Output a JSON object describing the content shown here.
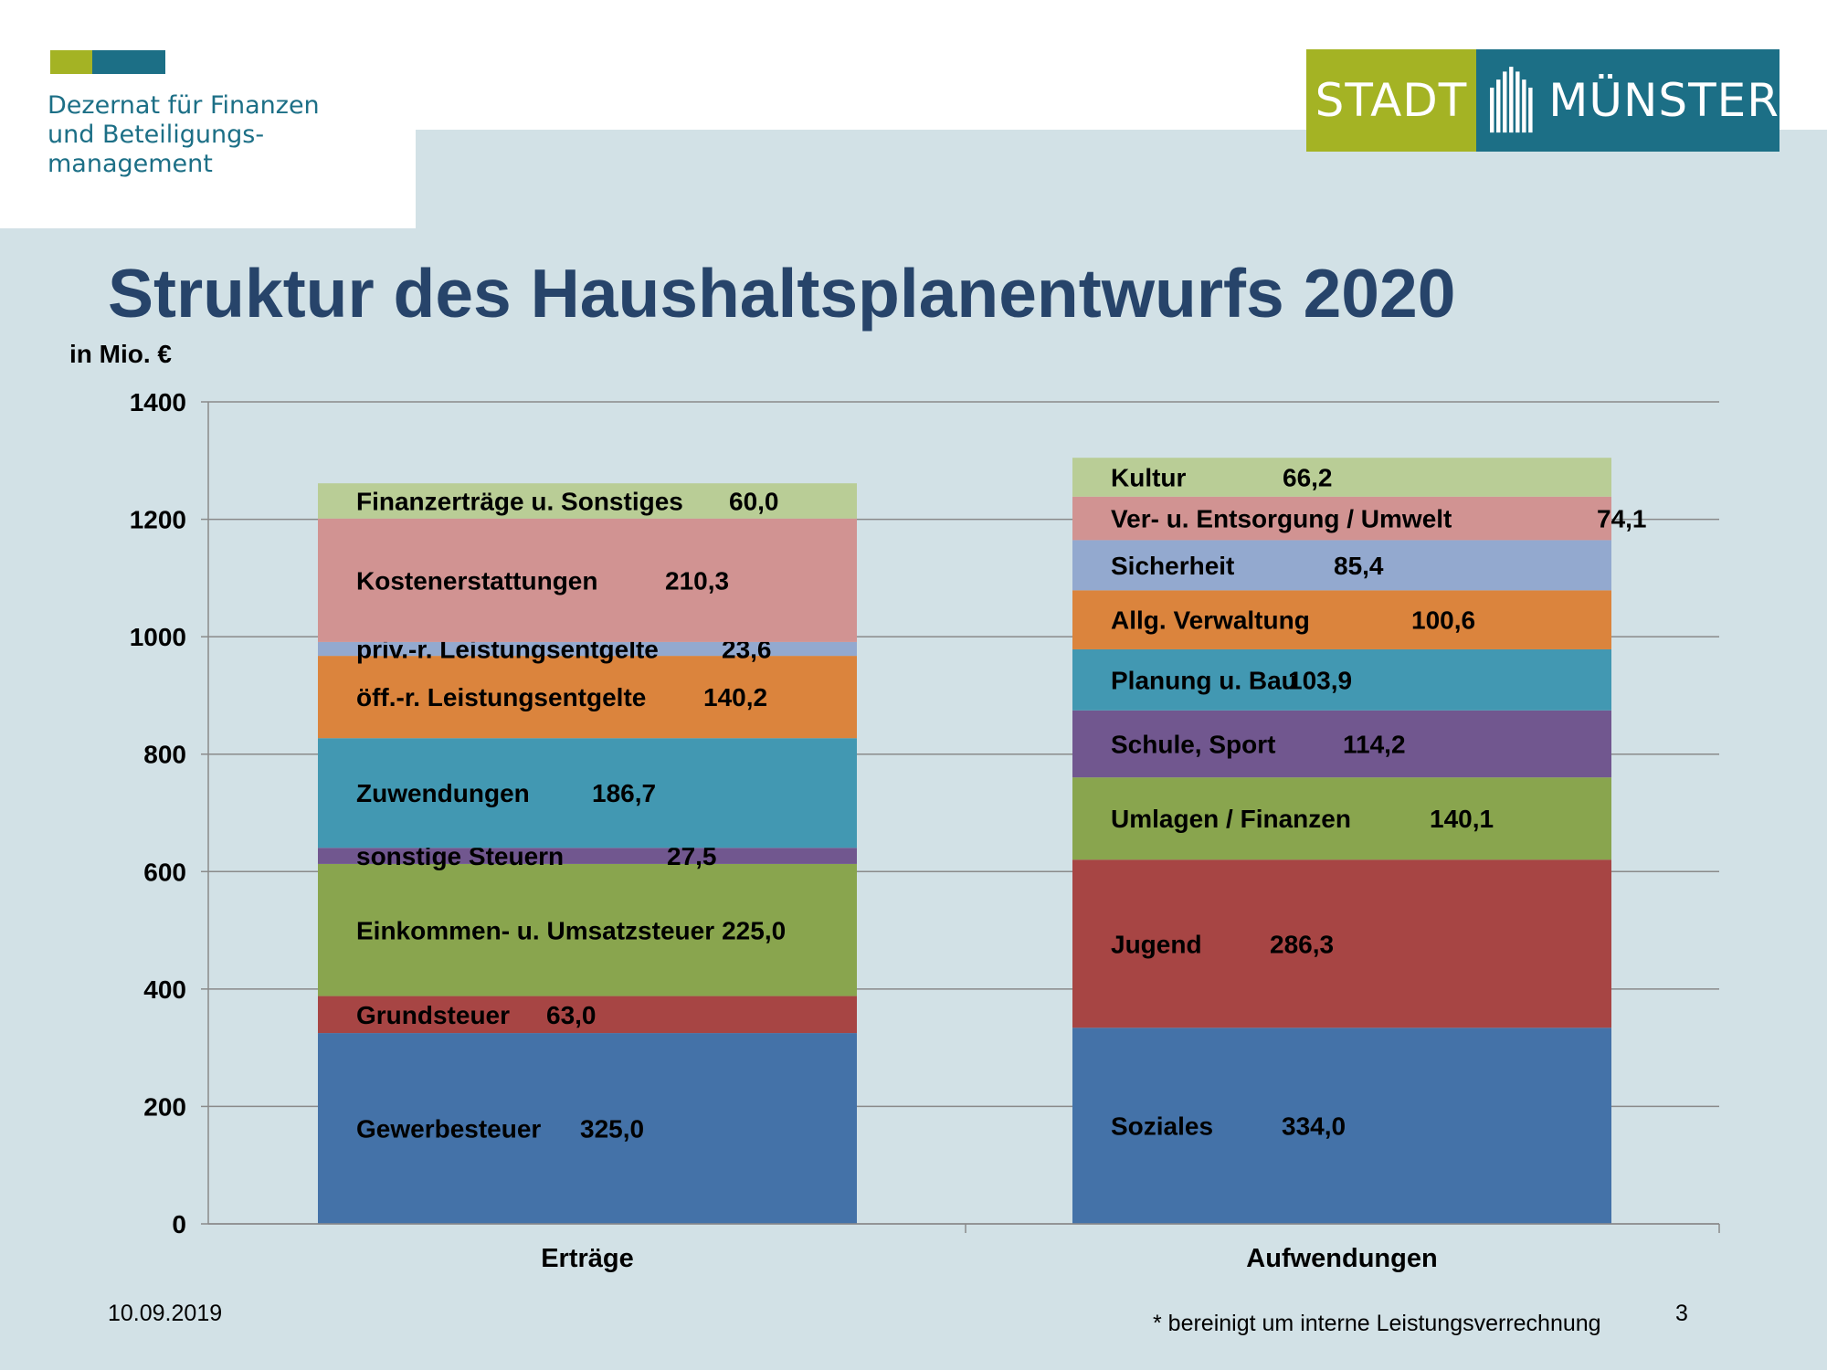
{
  "header": {
    "department": "Dezernat für Finanzen\nund Beteiligungs-\nmanagement",
    "logo_left": "STADT",
    "logo_right": "MÜNSTER",
    "colors": {
      "logo_green": "#a4b324",
      "logo_teal": "#1c6f86"
    }
  },
  "title": "Struktur des Haushaltsplanentwurfs 2020",
  "unit_label": "in Mio. €",
  "footer": {
    "date": "10.09.2019",
    "note": "* bereinigt um interne Leistungsverrechnung",
    "page": "3"
  },
  "chart_data": {
    "type": "bar",
    "stacked": true,
    "ylabel": "in Mio. €",
    "ylim": [
      0,
      1400
    ],
    "yticks": [
      0,
      200,
      400,
      600,
      800,
      1000,
      1200,
      1400
    ],
    "grid": true,
    "categories": [
      "Erträge",
      "Aufwendungen"
    ],
    "stacks": [
      {
        "category": "Erträge",
        "segments": [
          {
            "label": "Gewerbesteuer",
            "value": 325.0,
            "value_text": "325,0",
            "color": "#4472a8"
          },
          {
            "label": "Grundsteuer",
            "value": 63.0,
            "value_text": "63,0",
            "color": "#a74544"
          },
          {
            "label": "Einkommen- u. Umsatzsteuer",
            "value": 225.0,
            "value_text": "225,0",
            "color": "#89a54e"
          },
          {
            "label": "sonstige Steuern",
            "value": 27.5,
            "value_text": "27,5",
            "color": "#71578f"
          },
          {
            "label": "Zuwendungen",
            "value": 186.7,
            "value_text": "186,7",
            "color": "#4298b2"
          },
          {
            "label": "öff.-r. Leistungsentgelte",
            "value": 140.2,
            "value_text": "140,2",
            "color": "#db843d"
          },
          {
            "label": "priv.-r. Leistungsentgelte",
            "value": 23.6,
            "value_text": "23,6",
            "color": "#93a9cf"
          },
          {
            "label": "Kostenerstattungen",
            "value": 210.3,
            "value_text": "210,3",
            "color": "#d19392"
          },
          {
            "label": "Finanzerträge u. Sonstiges",
            "value": 60.0,
            "value_text": "60,0",
            "color": "#b9cd96"
          }
        ]
      },
      {
        "category": "Aufwendungen",
        "segments": [
          {
            "label": "Soziales",
            "value": 334.0,
            "value_text": "334,0",
            "color": "#4472a8"
          },
          {
            "label": "Jugend",
            "value": 286.3,
            "value_text": "286,3",
            "color": "#a74544"
          },
          {
            "label": "Umlagen  / Finanzen",
            "value": 140.1,
            "value_text": "140,1",
            "color": "#89a54e"
          },
          {
            "label": "Schule, Sport",
            "value": 114.2,
            "value_text": "114,2",
            "color": "#71578f"
          },
          {
            "label": "Planung u. Bau",
            "value": 103.9,
            "value_text": "103,9",
            "color": "#4298b2"
          },
          {
            "label": "Allg. Verwaltung",
            "value": 100.6,
            "value_text": "100,6",
            "color": "#db843d"
          },
          {
            "label": "Sicherheit",
            "value": 85.4,
            "value_text": "85,4",
            "color": "#93a9cf"
          },
          {
            "label": "Ver- u. Entsorgung / Umwelt",
            "value": 74.1,
            "value_text": "74,1",
            "color": "#d19392"
          },
          {
            "label": "Kultur",
            "value": 66.2,
            "value_text": "66,2",
            "color": "#b9cd96"
          }
        ]
      }
    ]
  }
}
